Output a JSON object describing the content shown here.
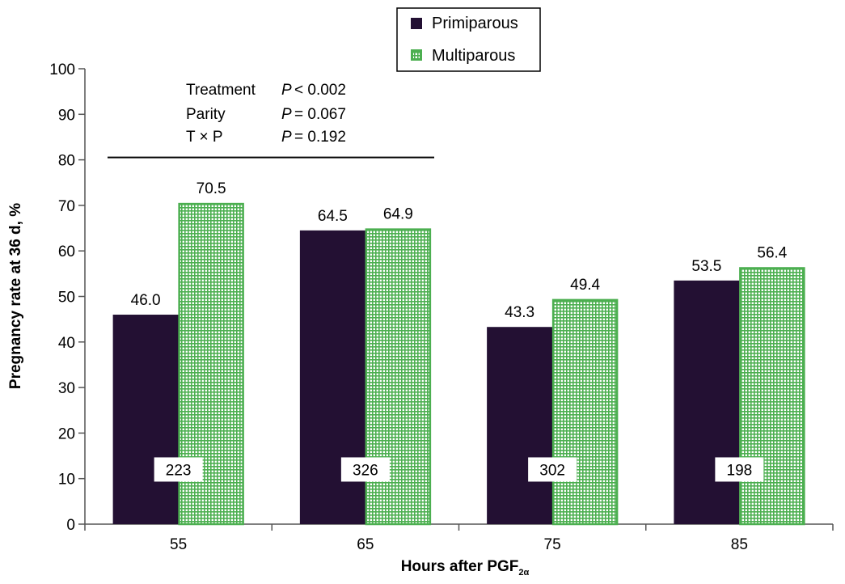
{
  "chart_data": {
    "type": "bar",
    "categories": [
      "55",
      "65",
      "75",
      "85"
    ],
    "series": [
      {
        "name": "Primiparous",
        "values": [
          46.0,
          64.5,
          43.3,
          53.5
        ],
        "labels": [
          "46.0",
          "64.5",
          "43.3",
          "53.5"
        ],
        "color": "#231033",
        "pattern": "solid"
      },
      {
        "name": "Multiparous",
        "values": [
          70.5,
          64.9,
          49.4,
          56.4
        ],
        "labels": [
          "70.5",
          "64.9",
          "49.4",
          "56.4"
        ],
        "color": "#4caf50",
        "pattern": "grid"
      }
    ],
    "counts": [
      "223",
      "326",
      "302",
      "198"
    ],
    "count_level": 12,
    "ylim": [
      0,
      100
    ],
    "yticks": [
      0,
      10,
      20,
      30,
      40,
      50,
      60,
      70,
      80,
      90,
      100
    ],
    "ytick_labels": [
      "0",
      "10",
      "20",
      "30",
      "40",
      "50",
      "60",
      "70",
      "80",
      "90",
      "100"
    ],
    "ylabel": "Pregnancy rate at 36 d, %",
    "xlabel": {
      "main": "Hours after PGF",
      "subscript": "2α"
    },
    "grid": false,
    "legend_position": "top-center",
    "stats": {
      "rows": [
        {
          "effect": "Treatment",
          "p_symbol": "P",
          "relation": "< 0.002"
        },
        {
          "effect": "Parity",
          "p_symbol": "P",
          "relation": "= 0.067"
        },
        {
          "effect": "T × P",
          "p_symbol": "P",
          "relation": "= 0.192"
        }
      ],
      "rule_level": 80
    }
  }
}
